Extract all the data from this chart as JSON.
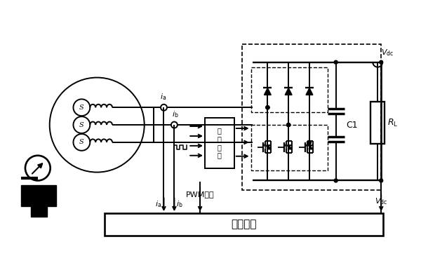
{
  "bg_color": "#ffffff",
  "lw": 1.4,
  "labels": {
    "ia_top": "$i_{\\rm a}$",
    "ib_top": "$i_{\\rm b}$",
    "ia_bot": "$i_{\\rm a}$",
    "ib_bot": "$i_{\\rm b}$",
    "Vdc_top": "$V_{\\rm dc}$",
    "Vdc_bot": "$V_{\\rm dc}$",
    "C1": "C1",
    "RL": "$R_{\\rm L}$",
    "drive": "驅\n動\n模\n塊",
    "pwm": "PWM信號",
    "control": "控制模塊"
  }
}
